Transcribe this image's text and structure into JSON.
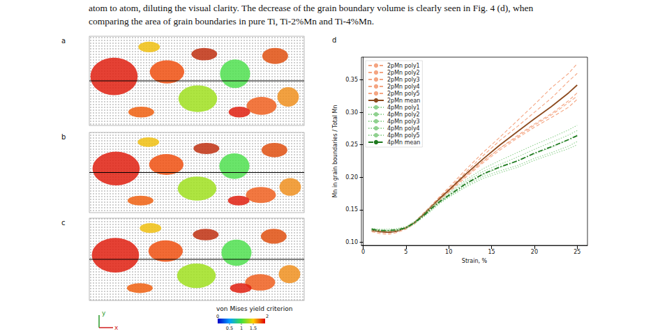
{
  "text_lines": [
    "atom to atom, diluting the visual clarity. The decrease of the grain boundary volume is clearly seen in Fig. 4 (d), when",
    "comparing the area of grain boundaries in pure Ti, Ti-2%Mn and Ti-4%Mn."
  ],
  "panels": [
    {
      "label": "a"
    },
    {
      "label": "b"
    },
    {
      "label": "c"
    }
  ],
  "axes_glyph": {
    "vertical": "y",
    "horizontal": "x"
  },
  "colorbar": {
    "title": "von Mises yield criterion",
    "range": [
      0,
      2
    ],
    "ticks": [
      0.5,
      1,
      1.5
    ]
  },
  "chart_data": {
    "panel_label": "d",
    "type": "line",
    "x_label": "Strain, %",
    "y_label": "Mn in grain boundaries / Total Mn",
    "x": [
      1,
      2,
      3,
      4,
      5,
      6,
      7,
      8,
      9,
      10,
      12,
      14,
      16,
      18,
      20,
      22,
      24,
      25
    ],
    "xlim": [
      -0.2,
      26.2
    ],
    "xticks": [
      0,
      5,
      10,
      15,
      20,
      25
    ],
    "ylim": [
      0.095,
      0.385
    ],
    "yticks": [
      {
        "value": 0.1,
        "label": "0.10"
      },
      {
        "value": 0.15,
        "label": "0.15"
      },
      {
        "value": 0.2,
        "label": "0.20"
      },
      {
        "value": 0.25,
        "label": "0.25"
      },
      {
        "value": 0.3,
        "label": "0.30"
      },
      {
        "value": 0.35,
        "label": "0.35"
      }
    ],
    "grid": false,
    "legend": "upper left",
    "series": [
      {
        "name": "2pMn poly1",
        "color": "#f4a582",
        "line_style": "dashed",
        "values": [
          0.117,
          0.115,
          0.114,
          0.117,
          0.121,
          0.13,
          0.143,
          0.157,
          0.171,
          0.184,
          0.212,
          0.238,
          0.262,
          0.287,
          0.312,
          0.338,
          0.36,
          0.375
        ]
      },
      {
        "name": "2pMn poly2",
        "color": "#f4a582",
        "line_style": "dashed",
        "values": [
          0.12,
          0.118,
          0.117,
          0.119,
          0.123,
          0.131,
          0.144,
          0.157,
          0.17,
          0.182,
          0.208,
          0.233,
          0.257,
          0.278,
          0.3,
          0.322,
          0.348,
          0.36
        ]
      },
      {
        "name": "2pMn poly3",
        "color": "#f4a582",
        "line_style": "dashed",
        "values": [
          0.116,
          0.113,
          0.112,
          0.115,
          0.12,
          0.128,
          0.14,
          0.153,
          0.166,
          0.178,
          0.202,
          0.224,
          0.245,
          0.264,
          0.282,
          0.298,
          0.318,
          0.33
        ]
      },
      {
        "name": "2pMn poly4",
        "color": "#f4a582",
        "line_style": "dashed",
        "values": [
          0.119,
          0.117,
          0.116,
          0.118,
          0.122,
          0.13,
          0.141,
          0.153,
          0.165,
          0.177,
          0.2,
          0.222,
          0.242,
          0.26,
          0.277,
          0.292,
          0.308,
          0.32
        ]
      },
      {
        "name": "2pMn poly5",
        "color": "#f4a582",
        "line_style": "dashed",
        "values": [
          0.118,
          0.117,
          0.116,
          0.118,
          0.123,
          0.131,
          0.142,
          0.155,
          0.168,
          0.179,
          0.203,
          0.225,
          0.245,
          0.262,
          0.28,
          0.296,
          0.315,
          0.325
        ]
      },
      {
        "name": "2pMn mean",
        "color": "#8c4a1e",
        "line_style": "solid",
        "values": [
          0.118,
          0.116,
          0.115,
          0.117,
          0.122,
          0.13,
          0.142,
          0.155,
          0.168,
          0.18,
          0.205,
          0.228,
          0.25,
          0.27,
          0.29,
          0.309,
          0.33,
          0.342
        ]
      },
      {
        "name": "4pMn poly1",
        "color": "#8fd18f",
        "line_style": "dotted",
        "values": [
          0.121,
          0.12,
          0.12,
          0.121,
          0.124,
          0.132,
          0.143,
          0.155,
          0.166,
          0.176,
          0.196,
          0.213,
          0.226,
          0.238,
          0.25,
          0.261,
          0.273,
          0.28
        ]
      },
      {
        "name": "4pMn poly2",
        "color": "#8fd18f",
        "line_style": "dotted",
        "values": [
          0.119,
          0.118,
          0.118,
          0.119,
          0.122,
          0.13,
          0.141,
          0.153,
          0.164,
          0.174,
          0.193,
          0.209,
          0.22,
          0.231,
          0.243,
          0.254,
          0.265,
          0.272
        ]
      },
      {
        "name": "4pMn poly3",
        "color": "#8fd18f",
        "line_style": "dotted",
        "values": [
          0.12,
          0.119,
          0.118,
          0.12,
          0.123,
          0.131,
          0.14,
          0.151,
          0.162,
          0.171,
          0.189,
          0.204,
          0.215,
          0.225,
          0.236,
          0.246,
          0.258,
          0.265
        ]
      },
      {
        "name": "4pMn poly4",
        "color": "#8fd18f",
        "line_style": "dotted",
        "values": [
          0.118,
          0.117,
          0.117,
          0.118,
          0.121,
          0.129,
          0.139,
          0.15,
          0.161,
          0.17,
          0.187,
          0.201,
          0.21,
          0.218,
          0.229,
          0.238,
          0.248,
          0.255
        ]
      },
      {
        "name": "4pMn poly5",
        "color": "#8fd18f",
        "line_style": "dotted",
        "values": [
          0.12,
          0.118,
          0.117,
          0.118,
          0.121,
          0.128,
          0.138,
          0.149,
          0.16,
          0.169,
          0.185,
          0.198,
          0.207,
          0.215,
          0.226,
          0.235,
          0.244,
          0.25
        ]
      },
      {
        "name": "4pMn mean",
        "color": "#1f7a1f",
        "line_style": "dashdot",
        "values": [
          0.12,
          0.118,
          0.118,
          0.119,
          0.122,
          0.13,
          0.14,
          0.152,
          0.163,
          0.172,
          0.19,
          0.205,
          0.216,
          0.225,
          0.237,
          0.247,
          0.258,
          0.264
        ]
      }
    ]
  }
}
